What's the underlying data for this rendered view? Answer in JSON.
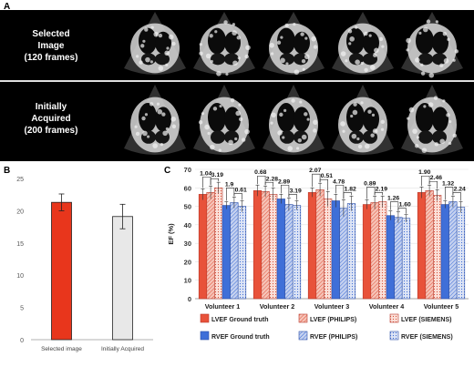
{
  "panel_a": {
    "letter": "A",
    "rows": [
      {
        "label_lines": [
          "Selected",
          "Image",
          "(120 frames)"
        ]
      },
      {
        "label_lines": [
          "Initially",
          "Acquired",
          "(200 frames)"
        ]
      }
    ],
    "frames_per_row": 5,
    "background": "#000000"
  },
  "panel_b": {
    "letter": "B",
    "chart_data": {
      "type": "bar",
      "categories": [
        "Selected image",
        "Initially Acquired"
      ],
      "values": [
        21.3,
        19.1
      ],
      "errors": [
        1.3,
        1.9
      ],
      "colors": [
        "#e8361c",
        "#e8e8e8"
      ],
      "ylim": [
        0,
        25
      ],
      "yticks": [
        0,
        5,
        10,
        15,
        20,
        25
      ],
      "xlabel": "",
      "ylabel": ""
    }
  },
  "panel_c": {
    "letter": "C",
    "chart_data": {
      "type": "bar",
      "ylabel": "EF (%)",
      "ylim": [
        0,
        70
      ],
      "yticks": [
        0,
        10,
        20,
        30,
        40,
        50,
        60,
        70
      ],
      "categories": [
        "Volunteer 1",
        "Volunteer 2",
        "Volunteer 3",
        "Volunteer 4",
        "Volunteer 5"
      ],
      "series": [
        {
          "name": "LVEF Ground truth",
          "values": [
            56.5,
            58.5,
            57.5,
            51.0,
            57.5
          ],
          "fill": "#e8523a",
          "pattern": "solid"
        },
        {
          "name": "LVEF (PHILIPS)",
          "values": [
            57.5,
            58.0,
            59.0,
            52.0,
            58.5
          ],
          "fill": "#f4b7a8",
          "pattern": "hatch"
        },
        {
          "name": "LVEF (SIEMENS)",
          "values": [
            60.0,
            56.5,
            54.0,
            52.5,
            56.0
          ],
          "fill": "#f4b7a8",
          "pattern": "dots"
        },
        {
          "name": "RVEF Ground truth",
          "values": [
            50.5,
            54.0,
            53.0,
            45.0,
            51.0
          ],
          "fill": "#3f6fd8",
          "pattern": "solid"
        },
        {
          "name": "RVEF (PHILIPS)",
          "values": [
            52.0,
            51.0,
            49.0,
            44.0,
            52.5
          ],
          "fill": "#aebde6",
          "pattern": "hatch"
        },
        {
          "name": "RVEF (SIEMENS)",
          "values": [
            50.0,
            50.5,
            51.5,
            43.5,
            49.5
          ],
          "fill": "#c9d4ef",
          "pattern": "dots"
        }
      ],
      "errors": [
        [
          3.0,
          3.0,
          2.5,
          2.5,
          3.0
        ],
        [
          3.5,
          3.0,
          3.5,
          3.5,
          3.0
        ],
        [
          3.0,
          3.5,
          4.0,
          3.0,
          3.0
        ],
        [
          2.0,
          2.5,
          3.5,
          2.5,
          2.0
        ],
        [
          3.0,
          3.5,
          4.5,
          3.0,
          3.0
        ],
        [
          3.0,
          2.5,
          4.0,
          2.0,
          3.0
        ]
      ],
      "annotations": [
        [
          "1.04",
          "3.19",
          "1.9",
          "0.61"
        ],
        [
          "0.68",
          "2.28",
          "2.89",
          "3.19"
        ],
        [
          "2.07",
          "0.51",
          "4.78",
          "1.82"
        ],
        [
          "0.89",
          "2.19",
          "1.26",
          "1.60"
        ],
        [
          "1.90",
          "2.46",
          "1.32",
          "2.24"
        ]
      ],
      "legend_placement": "bottom"
    }
  }
}
